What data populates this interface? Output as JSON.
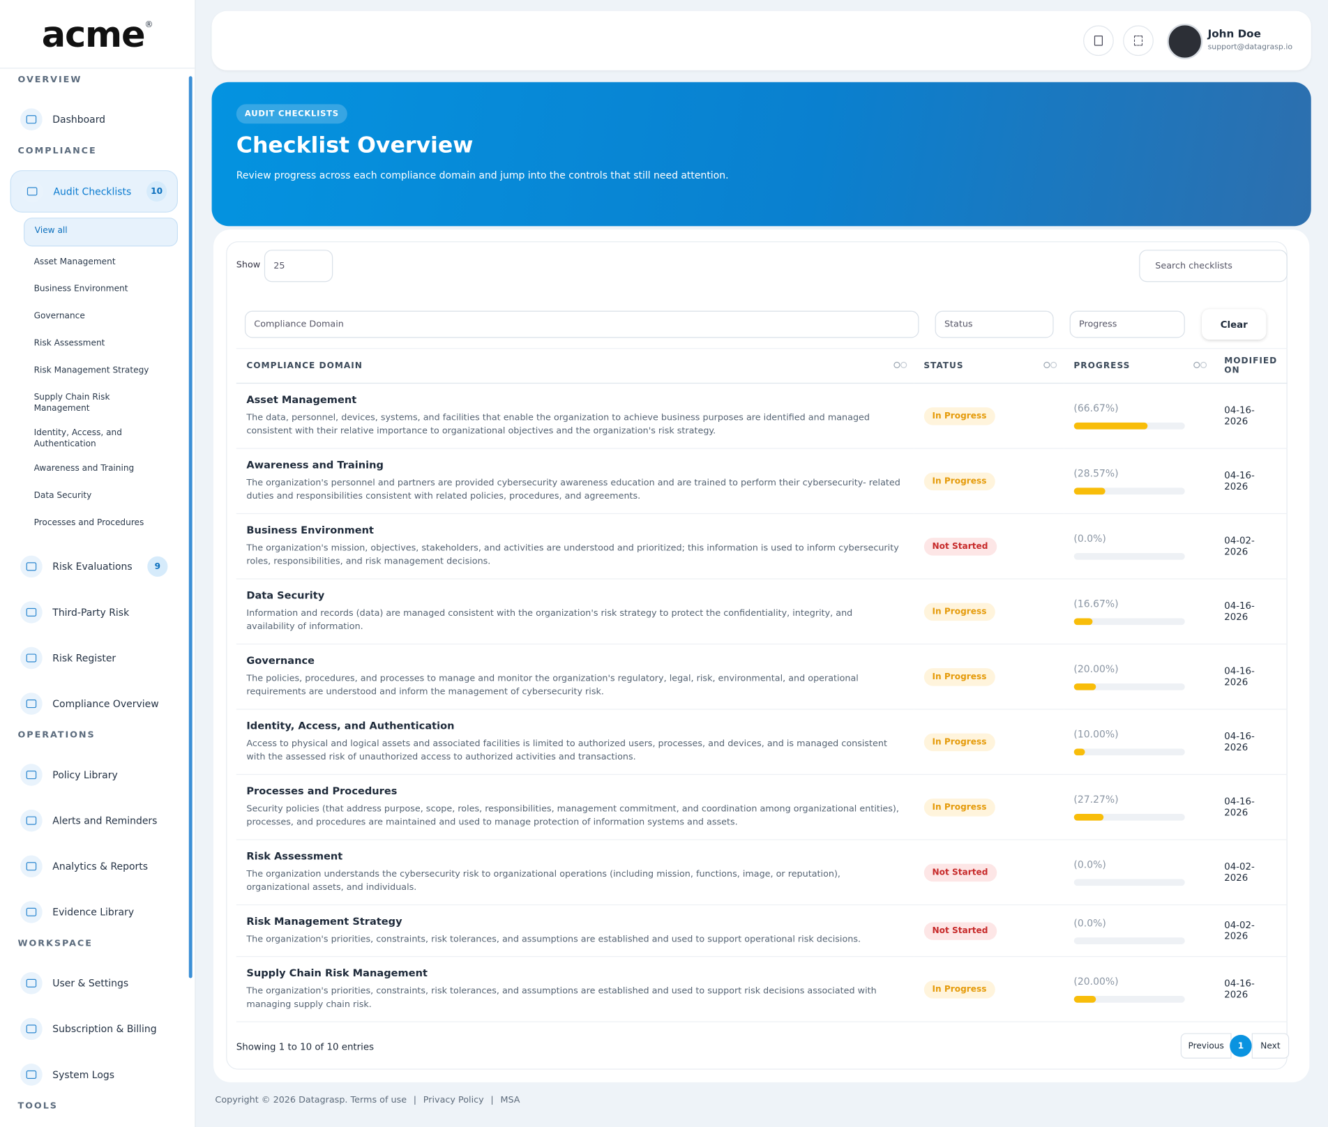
{
  "brand": "acme",
  "brand_mark": "®",
  "sidebar": [
    {
      "title": "OVERVIEW",
      "items": [
        {
          "label": "Dashboard"
        }
      ]
    },
    {
      "title": "COMPLIANCE",
      "items": [
        {
          "label": "Audit Checklists",
          "badge": 10,
          "active": true,
          "sub": [
            "View all",
            "Asset Management",
            "Business Environment",
            "Governance",
            "Risk Assessment",
            "Risk Management Strategy",
            "Supply Chain Risk Management",
            "Identity, Access, and Authentication",
            "Awareness and Training",
            "Data Security",
            "Processes and Procedures"
          ]
        },
        {
          "label": "Risk Evaluations",
          "badge": 9
        },
        {
          "label": "Third-Party Risk"
        },
        {
          "label": "Risk Register"
        },
        {
          "label": "Compliance Overview"
        }
      ]
    },
    {
      "title": "OPERATIONS",
      "items": [
        {
          "label": "Policy Library"
        },
        {
          "label": "Alerts and Reminders"
        },
        {
          "label": "Analytics & Reports"
        },
        {
          "label": "Evidence Library"
        }
      ]
    },
    {
      "title": "WORKSPACE",
      "items": [
        {
          "label": "User & Settings"
        },
        {
          "label": "Subscription & Billing"
        },
        {
          "label": "System Logs"
        }
      ]
    },
    {
      "title": "TOOLS",
      "items": []
    }
  ],
  "header": {
    "user_name": "John Doe",
    "user_email": "support@datagrasp.io"
  },
  "hero": {
    "tag": "AUDIT CHECKLISTS",
    "title": "Checklist Overview",
    "subtitle": "Review progress across each compliance domain and jump into the controls that still need attention."
  },
  "table": {
    "show_label": "Show",
    "page_size": "25",
    "search_placeholder": "Search checklists",
    "filters": [
      "Compliance Domain",
      "Status",
      "Progress"
    ],
    "clear": "Clear",
    "columns": [
      "COMPLIANCE DOMAIN",
      "STATUS",
      "PROGRESS",
      "MODIFIED ON"
    ],
    "rows": [
      {
        "domain": "Asset Management",
        "description": "The data, personnel, devices, systems, and facilities that enable the organization to achieve business purposes are identified and managed consistent with their relative importance to organizational objectives and the organization's risk strategy.",
        "status": "In Progress",
        "progress": {
          "value": 66.67,
          "label": "(66.67%)"
        },
        "modified": "04-16-2026"
      },
      {
        "domain": "Awareness and Training",
        "description": "The organization's personnel and partners are provided cybersecurity awareness education and are trained to perform their cybersecurity- related duties and responsibilities consistent with related policies, procedures, and agreements.",
        "status": "In Progress",
        "progress": {
          "value": 28.57,
          "label": "(28.57%)"
        },
        "modified": "04-16-2026"
      },
      {
        "domain": "Business Environment",
        "description": "The organization's mission, objectives, stakeholders, and activities are understood and prioritized; this information is used to inform cybersecurity roles, responsibilities, and risk management decisions.",
        "status": "Not Started",
        "progress": {
          "value": 0,
          "label": "(0.0%)"
        },
        "modified": "04-02-2026"
      },
      {
        "domain": "Data Security",
        "description": "Information and records (data) are managed consistent with the organization's risk strategy to protect the confidentiality, integrity, and availability of information.",
        "status": "In Progress",
        "progress": {
          "value": 16.67,
          "label": "(16.67%)"
        },
        "modified": "04-16-2026"
      },
      {
        "domain": "Governance",
        "description": "The policies, procedures, and processes to manage and monitor the organization's regulatory, legal, risk, environmental, and operational requirements are understood and inform the management of cybersecurity risk.",
        "status": "In Progress",
        "progress": {
          "value": 20,
          "label": "(20.00%)"
        },
        "modified": "04-16-2026"
      },
      {
        "domain": "Identity, Access, and Authentication",
        "description": "Access to physical and logical assets and associated facilities is limited to authorized users, processes, and devices, and is managed consistent with the assessed risk of unauthorized access to authorized activities and transactions.",
        "status": "In Progress",
        "progress": {
          "value": 10,
          "label": "(10.00%)"
        },
        "modified": "04-16-2026"
      },
      {
        "domain": "Processes and Procedures",
        "description": "Security policies (that address purpose, scope, roles, responsibilities, management commitment, and coordination among organizational entities), processes, and procedures are maintained and used to manage protection of information systems and assets.",
        "status": "In Progress",
        "progress": {
          "value": 27.27,
          "label": "(27.27%)"
        },
        "modified": "04-16-2026"
      },
      {
        "domain": "Risk Assessment",
        "description": "The organization understands the cybersecurity risk to organizational operations (including mission, functions, image, or reputation), organizational assets, and individuals.",
        "status": "Not Started",
        "progress": {
          "value": 0,
          "label": "(0.0%)"
        },
        "modified": "04-02-2026"
      },
      {
        "domain": "Risk Management Strategy",
        "description": "The organization's priorities, constraints, risk tolerances, and assumptions are established and used to support operational risk decisions.",
        "status": "Not Started",
        "progress": {
          "value": 0,
          "label": "(0.0%)"
        },
        "modified": "04-02-2026"
      },
      {
        "domain": "Supply Chain Risk Management",
        "description": "The organization's priorities, constraints, risk tolerances, and assumptions are established and used to support risk decisions associated with managing supply chain risk.",
        "status": "In Progress",
        "progress": {
          "value": 20,
          "label": "(20.00%)"
        },
        "modified": "04-16-2026"
      }
    ],
    "footer": "Showing 1 to 10 of 10 entries",
    "previous": "Previous",
    "current_page": "1",
    "next": "Next"
  },
  "footer": {
    "copyright": "Copyright © 2026 Datagrasp.",
    "links": [
      "Terms of use",
      "Privacy Policy",
      "MSA"
    ]
  }
}
